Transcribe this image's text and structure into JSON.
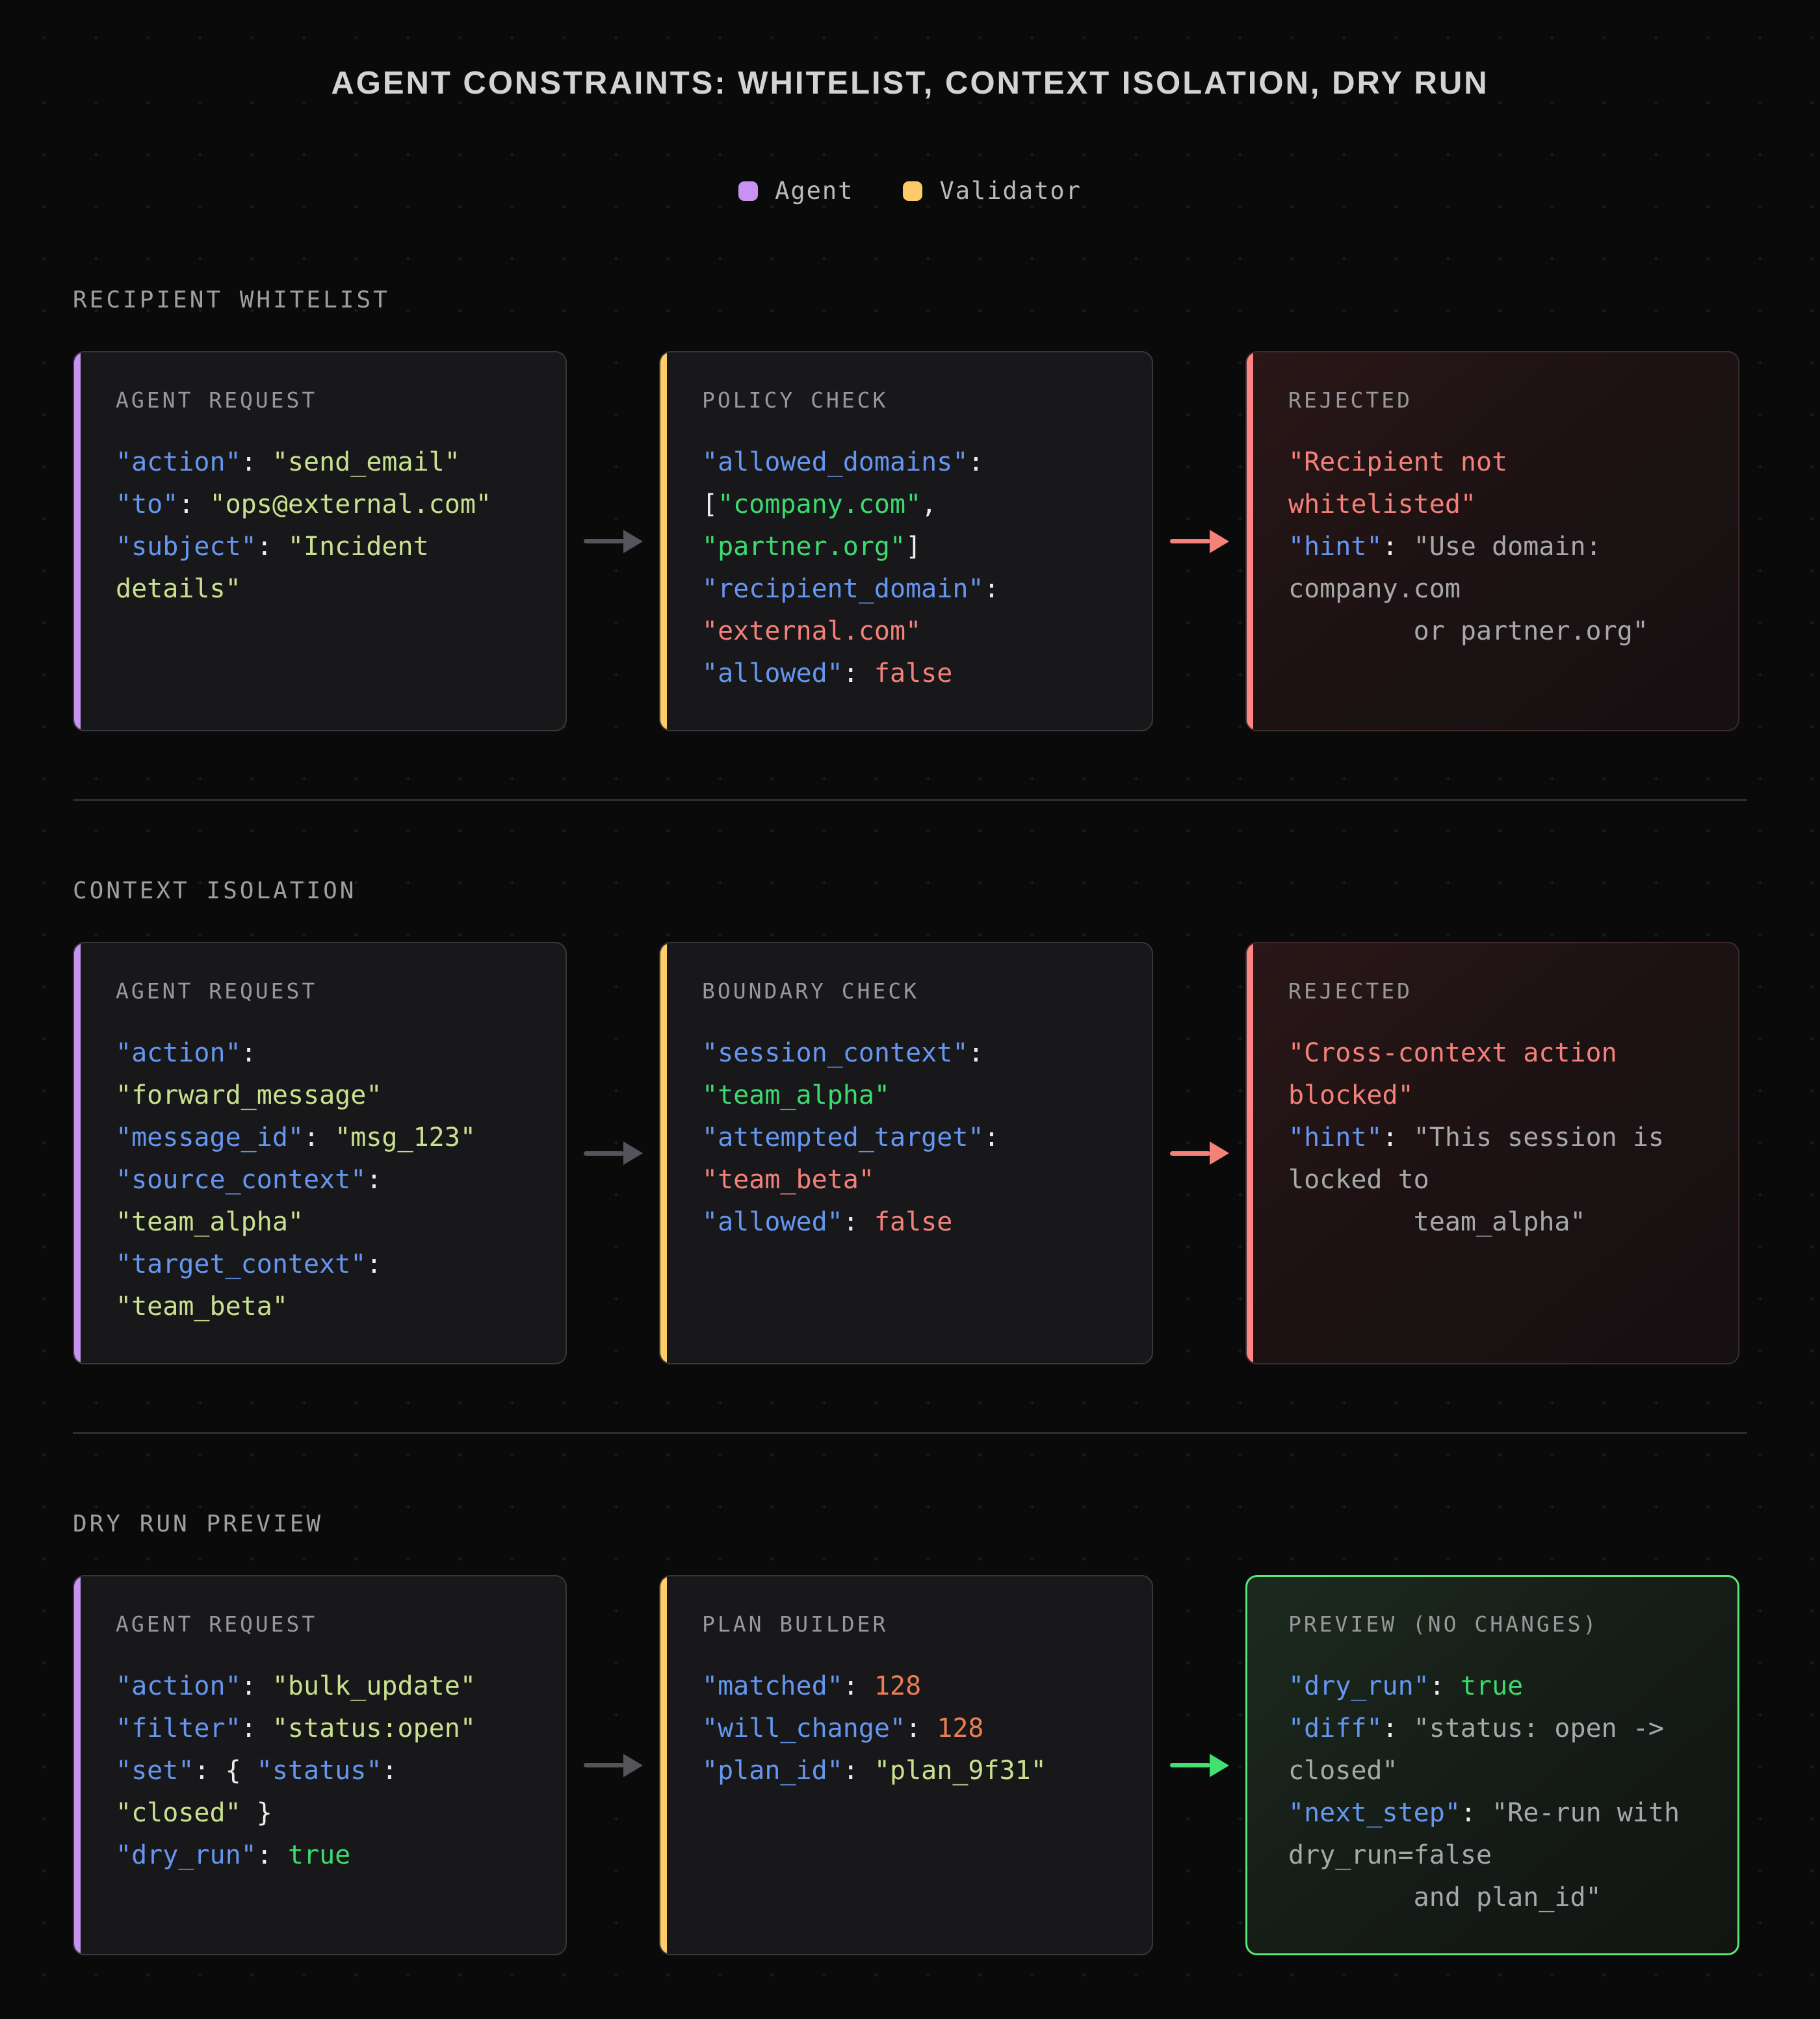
{
  "title": "AGENT CONSTRAINTS: WHITELIST, CONTEXT ISOLATION, DRY RUN",
  "legend": {
    "items": [
      {
        "label": "Agent",
        "color": "#c792f0"
      },
      {
        "label": "Validator",
        "color": "#fcca66"
      }
    ]
  },
  "colors": {
    "accent_agent": "#c792f0",
    "accent_validator": "#ffcc66",
    "accent_reject": "#ff8585",
    "accent_preview": "#57e879",
    "arrow_gray": "#54555a",
    "arrow_red": "#f4827b",
    "arrow_green": "#41e070",
    "syntax": {
      "key": "#6596f0",
      "punct": "#eceded",
      "soft": "#c9e18f",
      "green": "#3bdb6f",
      "red": "#f4807a",
      "num": "#e97e54",
      "gray": "#a6a8ab"
    }
  },
  "sections": [
    {
      "label": "RECIPIENT WHITELIST",
      "arrows": [
        "gray",
        "red"
      ],
      "cards": [
        {
          "name": "card-agent-request-whitelist",
          "header": "AGENT REQUEST",
          "tone": "plain",
          "accent": "agent",
          "lines": [
            [
              {
                "t": "\"action\"",
                "c": "k"
              },
              {
                "t": ": ",
                "c": "w"
              },
              {
                "t": "\"send_email\"",
                "c": "g"
              }
            ],
            [
              {
                "t": "\"to\"",
                "c": "k"
              },
              {
                "t": ": ",
                "c": "w"
              },
              {
                "t": "\"ops@external.com\"",
                "c": "g"
              }
            ],
            [
              {
                "t": "\"subject\"",
                "c": "k"
              },
              {
                "t": ": ",
                "c": "w"
              },
              {
                "t": "\"Incident",
                "c": "g"
              }
            ],
            [
              {
                "t": "details\"",
                "c": "g"
              }
            ]
          ]
        },
        {
          "name": "card-policy-check",
          "header": "POLICY CHECK",
          "tone": "plain",
          "accent": "validator",
          "lines": [
            [
              {
                "t": "\"allowed_domains\"",
                "c": "k"
              },
              {
                "t": ":",
                "c": "w"
              }
            ],
            [
              {
                "t": "[",
                "c": "w"
              },
              {
                "t": "\"company.com\"",
                "c": "G"
              },
              {
                "t": ",",
                "c": "w"
              }
            ],
            [
              {
                "t": "\"partner.org\"",
                "c": "G"
              },
              {
                "t": "]",
                "c": "w"
              }
            ],
            [
              {
                "t": "\"recipient_domain\"",
                "c": "k"
              },
              {
                "t": ":",
                "c": "w"
              }
            ],
            [
              {
                "t": "\"external.com\"",
                "c": "r"
              }
            ],
            [
              {
                "t": "\"allowed\"",
                "c": "k"
              },
              {
                "t": ": ",
                "c": "w"
              },
              {
                "t": "false",
                "c": "r"
              }
            ]
          ]
        },
        {
          "name": "card-rejected-whitelist",
          "header": "REJECTED",
          "tone": "reject",
          "accent": "reject",
          "lines": [
            [
              {
                "t": "\"Recipient not",
                "c": "r"
              }
            ],
            [
              {
                "t": "whitelisted\"",
                "c": "r"
              }
            ],
            [
              {
                "t": "\"hint\"",
                "c": "k"
              },
              {
                "t": ": ",
                "c": "w"
              },
              {
                "t": "\"Use domain:",
                "c": "s"
              }
            ],
            [
              {
                "t": "company.com",
                "c": "s"
              }
            ],
            [
              {
                "t": "        or partner.org\"",
                "c": "s"
              }
            ]
          ]
        }
      ]
    },
    {
      "label": "CONTEXT ISOLATION",
      "arrows": [
        "gray",
        "red"
      ],
      "cards": [
        {
          "name": "card-agent-request-isolation",
          "header": "AGENT REQUEST",
          "tone": "plain",
          "accent": "agent",
          "lines": [
            [
              {
                "t": "\"action\"",
                "c": "k"
              },
              {
                "t": ":",
                "c": "w"
              }
            ],
            [
              {
                "t": "\"forward_message\"",
                "c": "g"
              }
            ],
            [
              {
                "t": "\"message_id\"",
                "c": "k"
              },
              {
                "t": ": ",
                "c": "w"
              },
              {
                "t": "\"msg_123\"",
                "c": "g"
              }
            ],
            [
              {
                "t": "\"source_context\"",
                "c": "k"
              },
              {
                "t": ":",
                "c": "w"
              }
            ],
            [
              {
                "t": "\"team_alpha\"",
                "c": "g"
              }
            ],
            [
              {
                "t": "\"target_context\"",
                "c": "k"
              },
              {
                "t": ":",
                "c": "w"
              }
            ],
            [
              {
                "t": "\"team_beta\"",
                "c": "g"
              }
            ]
          ]
        },
        {
          "name": "card-boundary-check",
          "header": "BOUNDARY CHECK",
          "tone": "plain",
          "accent": "validator",
          "lines": [
            [
              {
                "t": "\"session_context\"",
                "c": "k"
              },
              {
                "t": ":",
                "c": "w"
              }
            ],
            [
              {
                "t": "\"team_alpha\"",
                "c": "G"
              }
            ],
            [
              {
                "t": "\"attempted_target\"",
                "c": "k"
              },
              {
                "t": ":",
                "c": "w"
              }
            ],
            [
              {
                "t": "\"team_beta\"",
                "c": "r"
              }
            ],
            [
              {
                "t": "\"allowed\"",
                "c": "k"
              },
              {
                "t": ": ",
                "c": "w"
              },
              {
                "t": "false",
                "c": "r"
              }
            ]
          ]
        },
        {
          "name": "card-rejected-isolation",
          "header": "REJECTED",
          "tone": "reject",
          "accent": "reject",
          "lines": [
            [
              {
                "t": "\"Cross-context action",
                "c": "r"
              }
            ],
            [
              {
                "t": "blocked\"",
                "c": "r"
              }
            ],
            [
              {
                "t": "\"hint\"",
                "c": "k"
              },
              {
                "t": ": ",
                "c": "w"
              },
              {
                "t": "\"This session is",
                "c": "s"
              }
            ],
            [
              {
                "t": "locked to",
                "c": "s"
              }
            ],
            [
              {
                "t": "        team_alpha\"",
                "c": "s"
              }
            ]
          ]
        }
      ]
    },
    {
      "label": "DRY RUN PREVIEW",
      "arrows": [
        "gray",
        "green"
      ],
      "cards": [
        {
          "name": "card-agent-request-dryrun",
          "header": "AGENT REQUEST",
          "tone": "plain",
          "accent": "agent",
          "lines": [
            [
              {
                "t": "\"action\"",
                "c": "k"
              },
              {
                "t": ": ",
                "c": "w"
              },
              {
                "t": "\"bulk_update\"",
                "c": "g"
              }
            ],
            [
              {
                "t": "\"filter\"",
                "c": "k"
              },
              {
                "t": ": ",
                "c": "w"
              },
              {
                "t": "\"status:open\"",
                "c": "g"
              }
            ],
            [
              {
                "t": "\"set\"",
                "c": "k"
              },
              {
                "t": ": { ",
                "c": "w"
              },
              {
                "t": "\"status\"",
                "c": "k"
              },
              {
                "t": ":",
                "c": "w"
              }
            ],
            [
              {
                "t": "\"closed\"",
                "c": "g"
              },
              {
                "t": " }",
                "c": "w"
              }
            ],
            [
              {
                "t": "\"dry_run\"",
                "c": "k"
              },
              {
                "t": ": ",
                "c": "w"
              },
              {
                "t": "true",
                "c": "G"
              }
            ]
          ]
        },
        {
          "name": "card-plan-builder",
          "header": "PLAN BUILDER",
          "tone": "plain",
          "accent": "validator",
          "lines": [
            [
              {
                "t": "\"matched\"",
                "c": "k"
              },
              {
                "t": ": ",
                "c": "w"
              },
              {
                "t": "128",
                "c": "o"
              }
            ],
            [
              {
                "t": "\"will_change\"",
                "c": "k"
              },
              {
                "t": ": ",
                "c": "w"
              },
              {
                "t": "128",
                "c": "o"
              }
            ],
            [
              {
                "t": "\"plan_id\"",
                "c": "k"
              },
              {
                "t": ": ",
                "c": "w"
              },
              {
                "t": "\"plan_9f31\"",
                "c": "g"
              }
            ]
          ]
        },
        {
          "name": "card-preview-no-changes",
          "header": "PREVIEW (NO CHANGES)",
          "tone": "preview",
          "accent": "preview",
          "lines": [
            [
              {
                "t": "\"dry_run\"",
                "c": "k"
              },
              {
                "t": ": ",
                "c": "w"
              },
              {
                "t": "true",
                "c": "G"
              }
            ],
            [
              {
                "t": "\"diff\"",
                "c": "k"
              },
              {
                "t": ": ",
                "c": "w"
              },
              {
                "t": "\"status: open ->",
                "c": "s"
              }
            ],
            [
              {
                "t": "closed\"",
                "c": "s"
              }
            ],
            [
              {
                "t": "\"next_step\"",
                "c": "k"
              },
              {
                "t": ": ",
                "c": "w"
              },
              {
                "t": "\"Re-run with",
                "c": "s"
              }
            ],
            [
              {
                "t": "dry_run=false",
                "c": "s"
              }
            ],
            [
              {
                "t": "        and plan_id\"",
                "c": "s"
              }
            ]
          ]
        }
      ]
    }
  ]
}
